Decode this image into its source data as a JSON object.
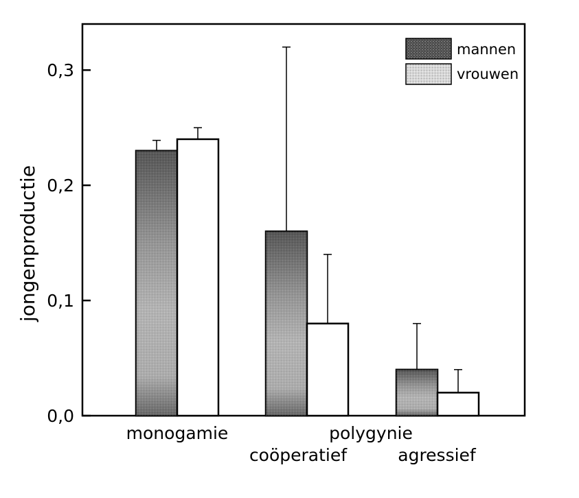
{
  "chart_data": {
    "type": "bar",
    "ylabel": "jongenproductie",
    "ylim": [
      0,
      0.34
    ],
    "yticks": [
      0.0,
      0.1,
      0.2,
      0.3
    ],
    "ytick_labels": [
      "0,0",
      "0,1",
      "0,2",
      "0,3"
    ],
    "legend_position": "top-right",
    "categories": [
      "monogamie",
      "coöperatief",
      "agressief"
    ],
    "group_label": "polygynie",
    "series": [
      {
        "name": "mannen",
        "values": [
          0.23,
          0.16,
          0.04
        ],
        "errors": [
          0.009,
          0.16,
          0.04
        ],
        "color": "#4a4a4a"
      },
      {
        "name": "vrouwen",
        "values": [
          0.24,
          0.08,
          0.02
        ],
        "errors": [
          0.01,
          0.06,
          0.02
        ],
        "color": "#ffffff"
      }
    ],
    "grid": false
  }
}
